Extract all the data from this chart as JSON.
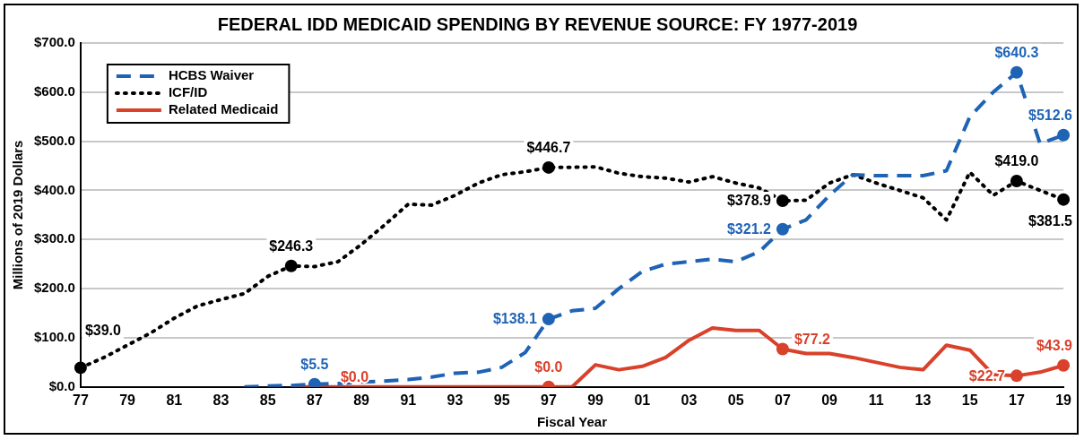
{
  "chart_data": {
    "type": "line",
    "title": "FEDERAL IDD MEDICAID SPENDING BY REVENUE SOURCE: FY 1977-2019",
    "xlabel": "Fiscal Year",
    "ylabel": "Millions of 2019 Dollars",
    "categories": [
      "77",
      null,
      "79",
      null,
      "81",
      null,
      "83",
      null,
      "85",
      null,
      "87",
      null,
      "89",
      null,
      "91",
      null,
      "93",
      null,
      "95",
      null,
      "97",
      null,
      "99",
      null,
      "01",
      null,
      "03",
      null,
      "05",
      null,
      "07",
      null,
      "09",
      null,
      "11",
      null,
      "13",
      null,
      "15",
      null,
      "17",
      null,
      "19"
    ],
    "ylim": [
      0,
      700
    ],
    "yticks": [
      {
        "value": 0,
        "label": "$0.0"
      },
      {
        "value": 100,
        "label": "$100.0"
      },
      {
        "value": 200,
        "label": "$200.0"
      },
      {
        "value": 300,
        "label": "$300.0"
      },
      {
        "value": 400,
        "label": "$400.0"
      },
      {
        "value": 500,
        "label": "$500.0"
      },
      {
        "value": 600,
        "label": "$600.0"
      },
      {
        "value": 700,
        "label": "$700.0"
      }
    ],
    "grid": "y",
    "legend": "top left",
    "series": [
      {
        "name": "HCBS Waiver",
        "color": "#1f63b5",
        "line_style": "dashed",
        "values": [
          null,
          null,
          null,
          null,
          null,
          null,
          null,
          0,
          2,
          3,
          5.5,
          7,
          10,
          12,
          15,
          20,
          28,
          30,
          40,
          70,
          138.1,
          155,
          160,
          200,
          235,
          250,
          255,
          260,
          255,
          275,
          321.2,
          340,
          390,
          432,
          430,
          430,
          430,
          440,
          550,
          600,
          640.3,
          495,
          512.6
        ],
        "value_labels": [
          null,
          null,
          null,
          null,
          null,
          null,
          null,
          null,
          null,
          null,
          "$5.5",
          null,
          null,
          null,
          null,
          null,
          null,
          null,
          null,
          null,
          "$138.1",
          null,
          null,
          null,
          null,
          null,
          null,
          null,
          null,
          null,
          "$321.2",
          null,
          null,
          null,
          null,
          null,
          null,
          null,
          null,
          null,
          "$640.3",
          null,
          "$512.6"
        ]
      },
      {
        "name": "ICF/ID",
        "color": "#000000",
        "line_style": "dotted",
        "values": [
          39,
          60,
          85,
          110,
          140,
          165,
          178,
          190,
          225,
          246.3,
          245,
          255,
          290,
          330,
          372,
          370,
          390,
          415,
          432,
          438,
          446.7,
          447,
          448,
          435,
          428,
          425,
          417,
          428,
          415,
          405,
          378.9,
          380,
          415,
          432,
          415,
          400,
          385,
          340,
          437,
          390,
          419,
          400,
          381.5
        ],
        "value_labels": [
          "$39.0",
          null,
          null,
          null,
          null,
          null,
          null,
          null,
          null,
          "$246.3",
          null,
          null,
          null,
          null,
          null,
          null,
          null,
          null,
          null,
          null,
          "$446.7",
          null,
          null,
          null,
          null,
          null,
          null,
          null,
          null,
          null,
          "$378.9",
          null,
          null,
          null,
          null,
          null,
          null,
          null,
          null,
          null,
          "$419.0",
          null,
          "$381.5"
        ]
      },
      {
        "name": "Related Medicaid",
        "color": "#d9412b",
        "line_style": "solid",
        "values": [
          null,
          null,
          null,
          null,
          null,
          null,
          null,
          null,
          null,
          0,
          0,
          0,
          0,
          0,
          0,
          0,
          0,
          0,
          0,
          0,
          0,
          0,
          45,
          35,
          42,
          60,
          95,
          120,
          115,
          115,
          77.2,
          68,
          68,
          60,
          50,
          40,
          35,
          85,
          75,
          25,
          22.7,
          30,
          43.9
        ],
        "value_labels": [
          null,
          null,
          null,
          null,
          null,
          null,
          null,
          null,
          null,
          null,
          "$0.0",
          null,
          null,
          null,
          null,
          null,
          null,
          null,
          null,
          null,
          "$0.0",
          null,
          null,
          null,
          null,
          null,
          null,
          null,
          null,
          null,
          "$77.2",
          null,
          null,
          null,
          null,
          null,
          null,
          null,
          null,
          null,
          "$22.7",
          null,
          "$43.9"
        ]
      }
    ]
  }
}
